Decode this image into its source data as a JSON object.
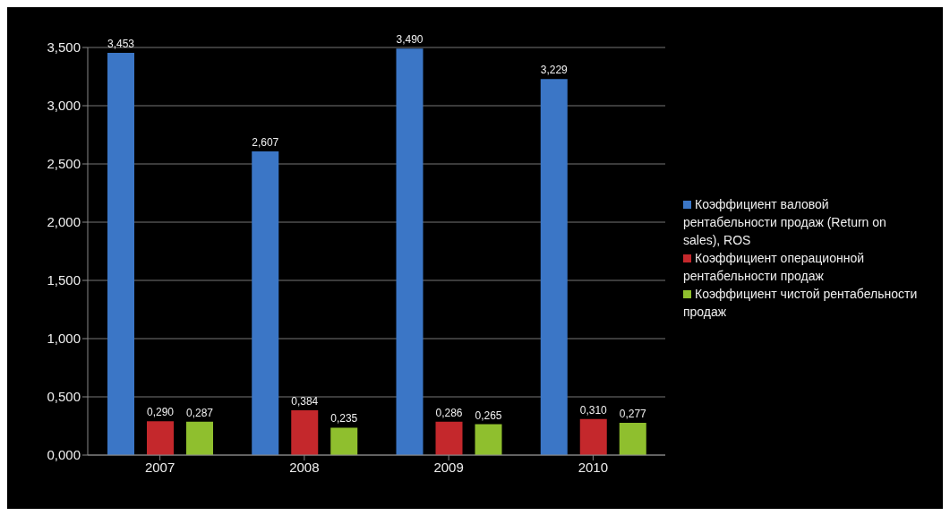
{
  "chart_data": {
    "type": "bar",
    "categories": [
      "2007",
      "2008",
      "2009",
      "2010"
    ],
    "series": [
      {
        "name": "Коэффициент валовой рентабельности продаж (Return on sales), ROS",
        "color": "#3b76c6",
        "values": [
          3.453,
          2.607,
          3.49,
          3.229
        ],
        "value_labels": [
          "3,453",
          "2,607",
          "3,490",
          "3,229"
        ]
      },
      {
        "name": "Коэффициент операционной рентабельности продаж",
        "color": "#c4282c",
        "values": [
          0.29,
          0.384,
          0.286,
          0.31
        ],
        "value_labels": [
          "0,290",
          "0,384",
          "0,286",
          "0,310"
        ]
      },
      {
        "name": "Коэффициент чистой рентабельности продаж",
        "color": "#8fbf2e",
        "values": [
          0.287,
          0.235,
          0.265,
          0.277
        ],
        "value_labels": [
          "0,287",
          "0,235",
          "0,265",
          "0,277"
        ]
      }
    ],
    "ylim": [
      0,
      3.5
    ],
    "yticks": [
      {
        "value": 0,
        "label": "0,000"
      },
      {
        "value": 0.5,
        "label": "0,500"
      },
      {
        "value": 1,
        "label": "1,000"
      },
      {
        "value": 1.5,
        "label": "1,500"
      },
      {
        "value": 2,
        "label": "2,000"
      },
      {
        "value": 2.5,
        "label": "2,500"
      },
      {
        "value": 3,
        "label": "3,000"
      },
      {
        "value": 3.5,
        "label": "3,500"
      }
    ],
    "grid": "y",
    "legend": "right"
  }
}
